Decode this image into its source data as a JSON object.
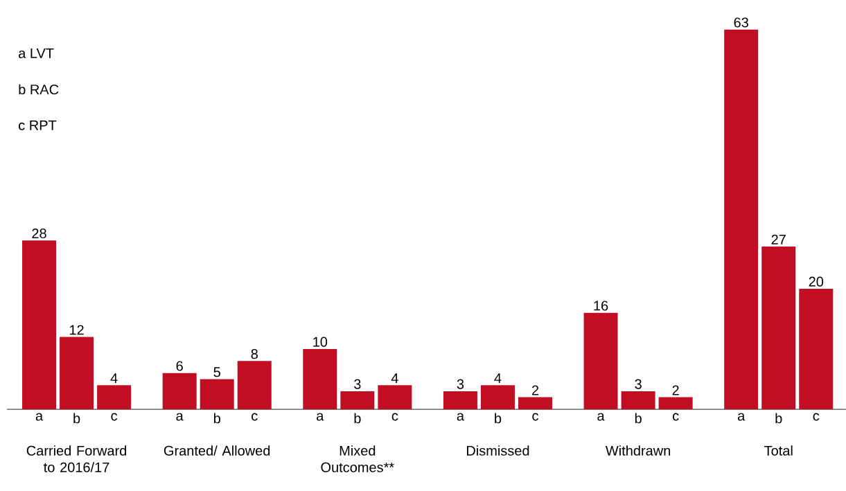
{
  "chart_data": {
    "type": "bar",
    "categories": [
      "a",
      "b",
      "c",
      "a",
      "b",
      "c",
      "a",
      "b",
      "c",
      "a",
      "b",
      "c",
      "a",
      "b",
      "c",
      "a",
      "b",
      "c"
    ],
    "values": [
      28,
      12,
      4,
      6,
      5,
      8,
      10,
      3,
      4,
      3,
      4,
      2,
      16,
      3,
      2,
      63,
      27,
      20
    ],
    "color": "#c20e23",
    "data_labels": true,
    "annotations": [
      "a LVT",
      "b RAC",
      "c RPT",
      "Carried Forward to 2016/17",
      "Granted/ Allowed",
      "Mixed Outcomes**",
      "Dismissed",
      "Withdrawn",
      "Total"
    ]
  }
}
